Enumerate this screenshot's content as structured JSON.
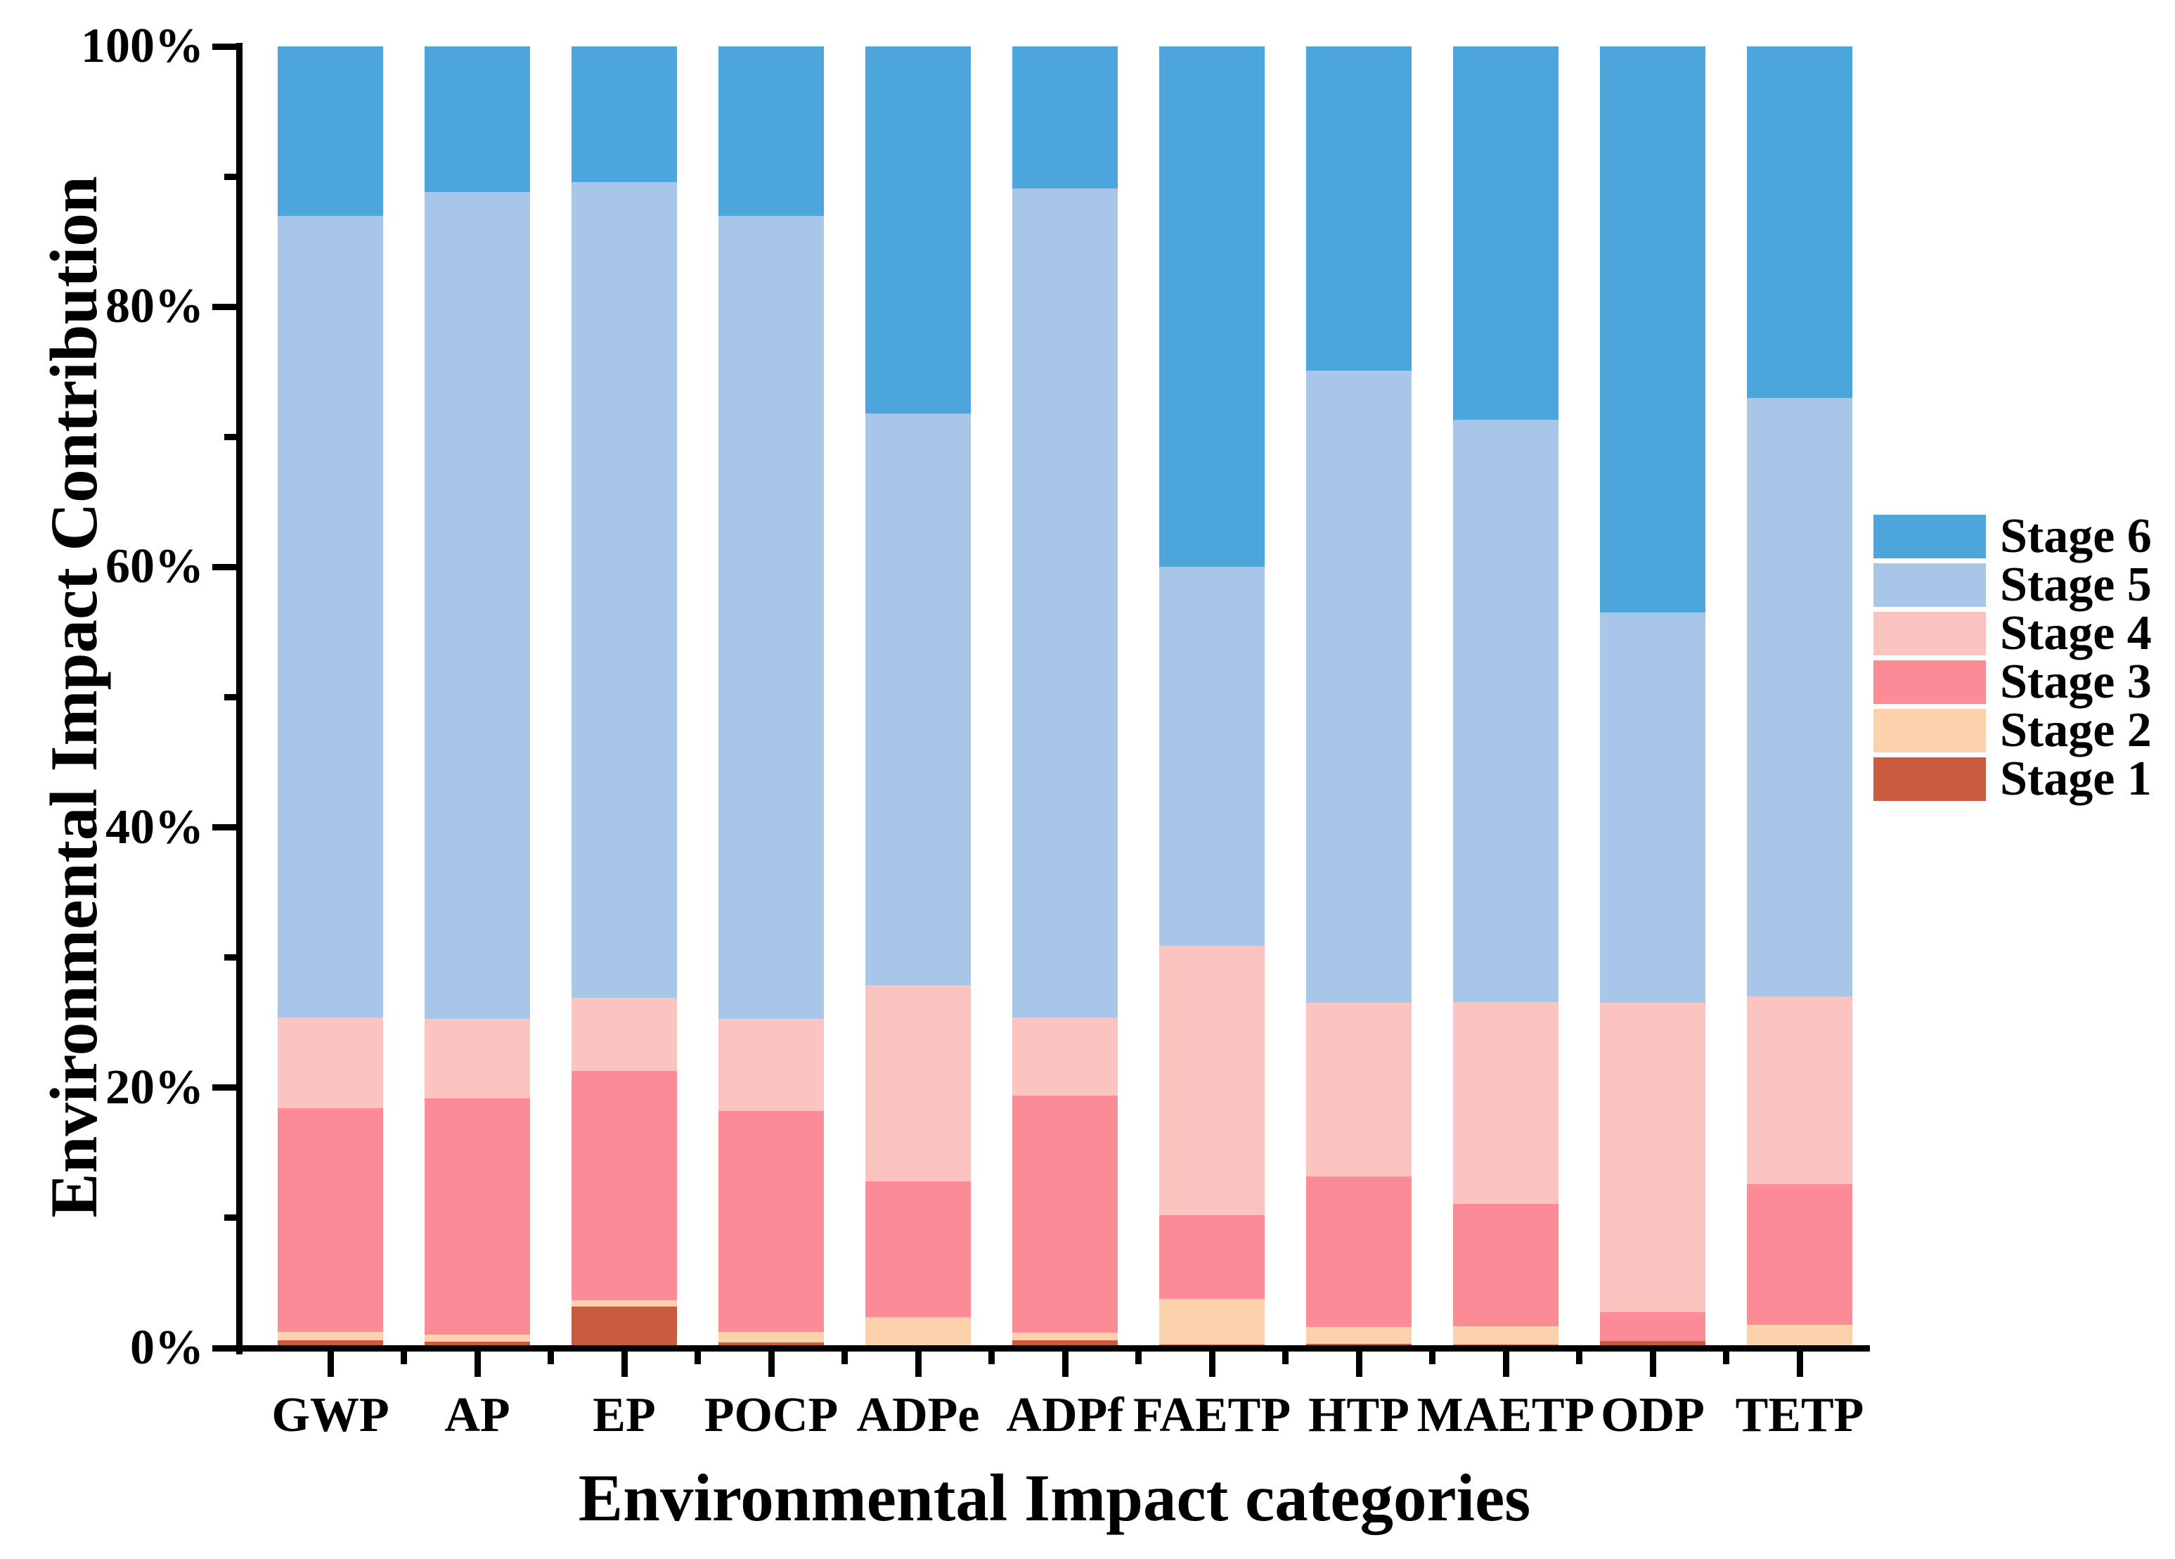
{
  "figure": {
    "y_axis": {
      "title": "Environmental Impact Contribution",
      "tick_labels": [
        "0%",
        "20%",
        "40%",
        "60%",
        "80%",
        "100%"
      ],
      "tick_values": [
        0,
        20,
        40,
        60,
        80,
        100
      ],
      "minor_tick_values": [
        10,
        30,
        50,
        70,
        90
      ],
      "range": [
        0,
        100
      ]
    },
    "x_axis": {
      "title": "Environmental Impact categories"
    },
    "legend": [
      {
        "label": "Stage 6",
        "color": "#4DA6DB"
      },
      {
        "label": "Stage 5",
        "color": "#A7C6E8"
      },
      {
        "label": "Stage 4",
        "color": "#FBC4C0"
      },
      {
        "label": "Stage 3",
        "color": "#FB8B94"
      },
      {
        "label": "Stage 2",
        "color": "#FCD1AC"
      },
      {
        "label": "Stage 1",
        "color": "#C95C3E"
      }
    ]
  },
  "chart_data": {
    "type": "bar",
    "stacked": true,
    "title": "",
    "xlabel": "Environmental Impact categories",
    "ylabel": "Environmental Impact Contribution",
    "ylim": [
      0,
      100
    ],
    "unit": "percent",
    "grid": false,
    "legend_position": "right",
    "categories": [
      "GWP",
      "AP",
      "EP",
      "POCP",
      "ADPe",
      "ADPf",
      "FAETP",
      "HTP",
      "MAETP",
      "ODP",
      "TETP"
    ],
    "series": [
      {
        "name": "Stage 1",
        "color": "#C95C3E",
        "values": [
          0.6,
          0.5,
          3.2,
          0.45,
          0.2,
          0.6,
          0.25,
          0.32,
          0.27,
          0.55,
          0.2
        ]
      },
      {
        "name": "Stage 2",
        "color": "#FCD1AC",
        "values": [
          0.65,
          0.5,
          0.5,
          0.8,
          2.2,
          0.6,
          3.55,
          1.28,
          1.38,
          0.0,
          1.6
        ]
      },
      {
        "name": "Stage 3",
        "color": "#FB8B94",
        "values": [
          17.15,
          18.2,
          17.6,
          16.95,
          10.4,
          18.2,
          6.4,
          11.6,
          9.45,
          2.2,
          10.8
        ]
      },
      {
        "name": "Stage 4",
        "color": "#FBC4C0",
        "values": [
          7.0,
          6.1,
          5.6,
          7.1,
          15.1,
          6.0,
          20.7,
          13.3,
          15.5,
          23.75,
          14.4
        ]
      },
      {
        "name": "Stage 5",
        "color": "#A7C6E8",
        "values": [
          61.6,
          63.5,
          62.7,
          61.7,
          43.9,
          63.7,
          29.1,
          48.6,
          44.7,
          30.0,
          46.0
        ]
      },
      {
        "name": "Stage 6",
        "color": "#4DA6DB",
        "values": [
          13.0,
          11.2,
          10.4,
          13.0,
          28.2,
          10.9,
          40.0,
          24.9,
          28.7,
          43.5,
          27.0
        ]
      }
    ]
  }
}
